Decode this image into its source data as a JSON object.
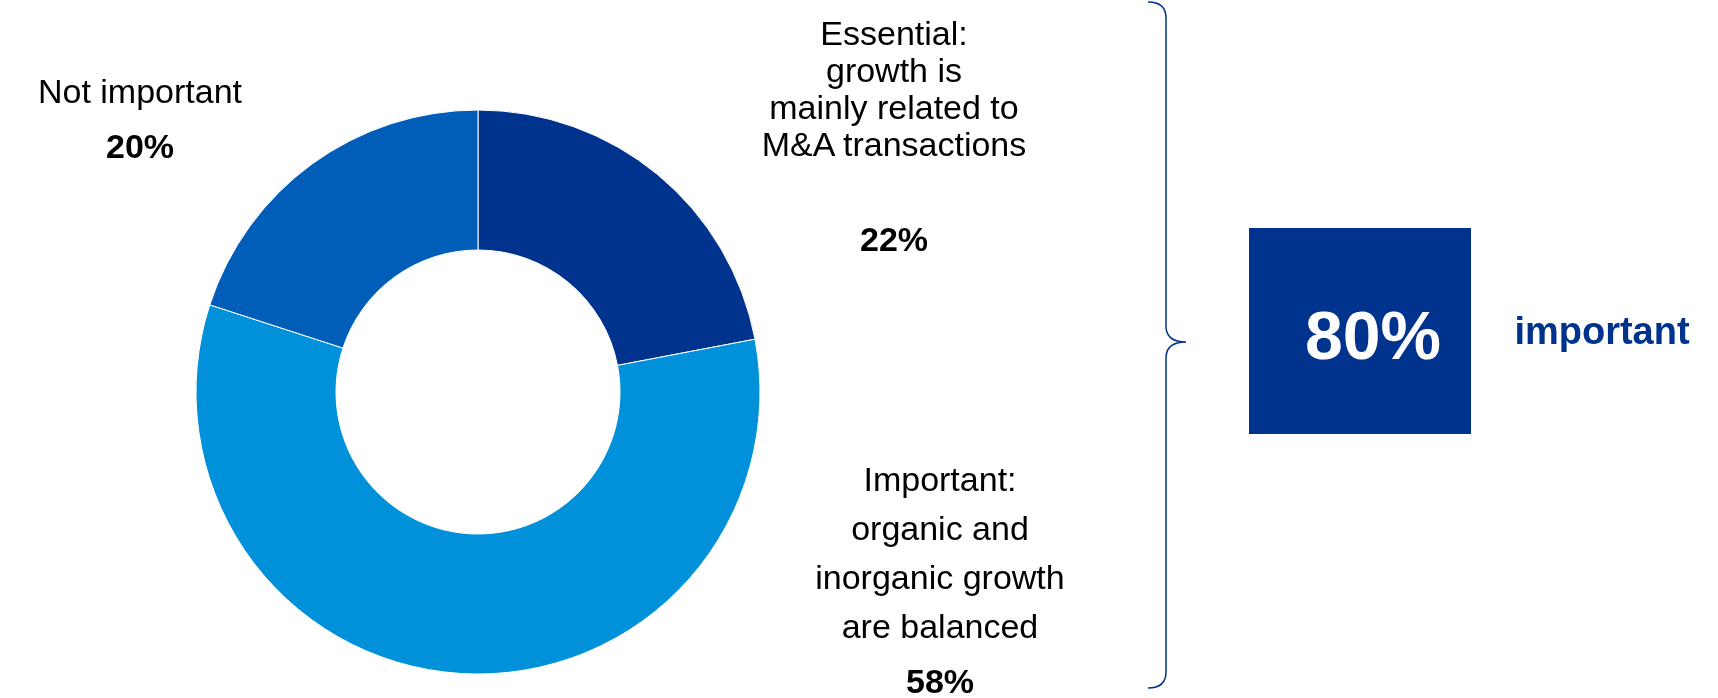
{
  "chart_data": {
    "type": "donut",
    "categories": [
      "Essential:\ngrowth is\nmainly related to\nM&A transactions",
      "Important:\norganic and\ninorganic growth\nare balanced",
      "Not important"
    ],
    "values": [
      22,
      58,
      20
    ],
    "colors": [
      "#00338d",
      "#0091da",
      "#005eb8"
    ],
    "value_labels": [
      "22%",
      "58%",
      "20%"
    ],
    "annotations": [
      "80%",
      "important"
    ]
  }
}
